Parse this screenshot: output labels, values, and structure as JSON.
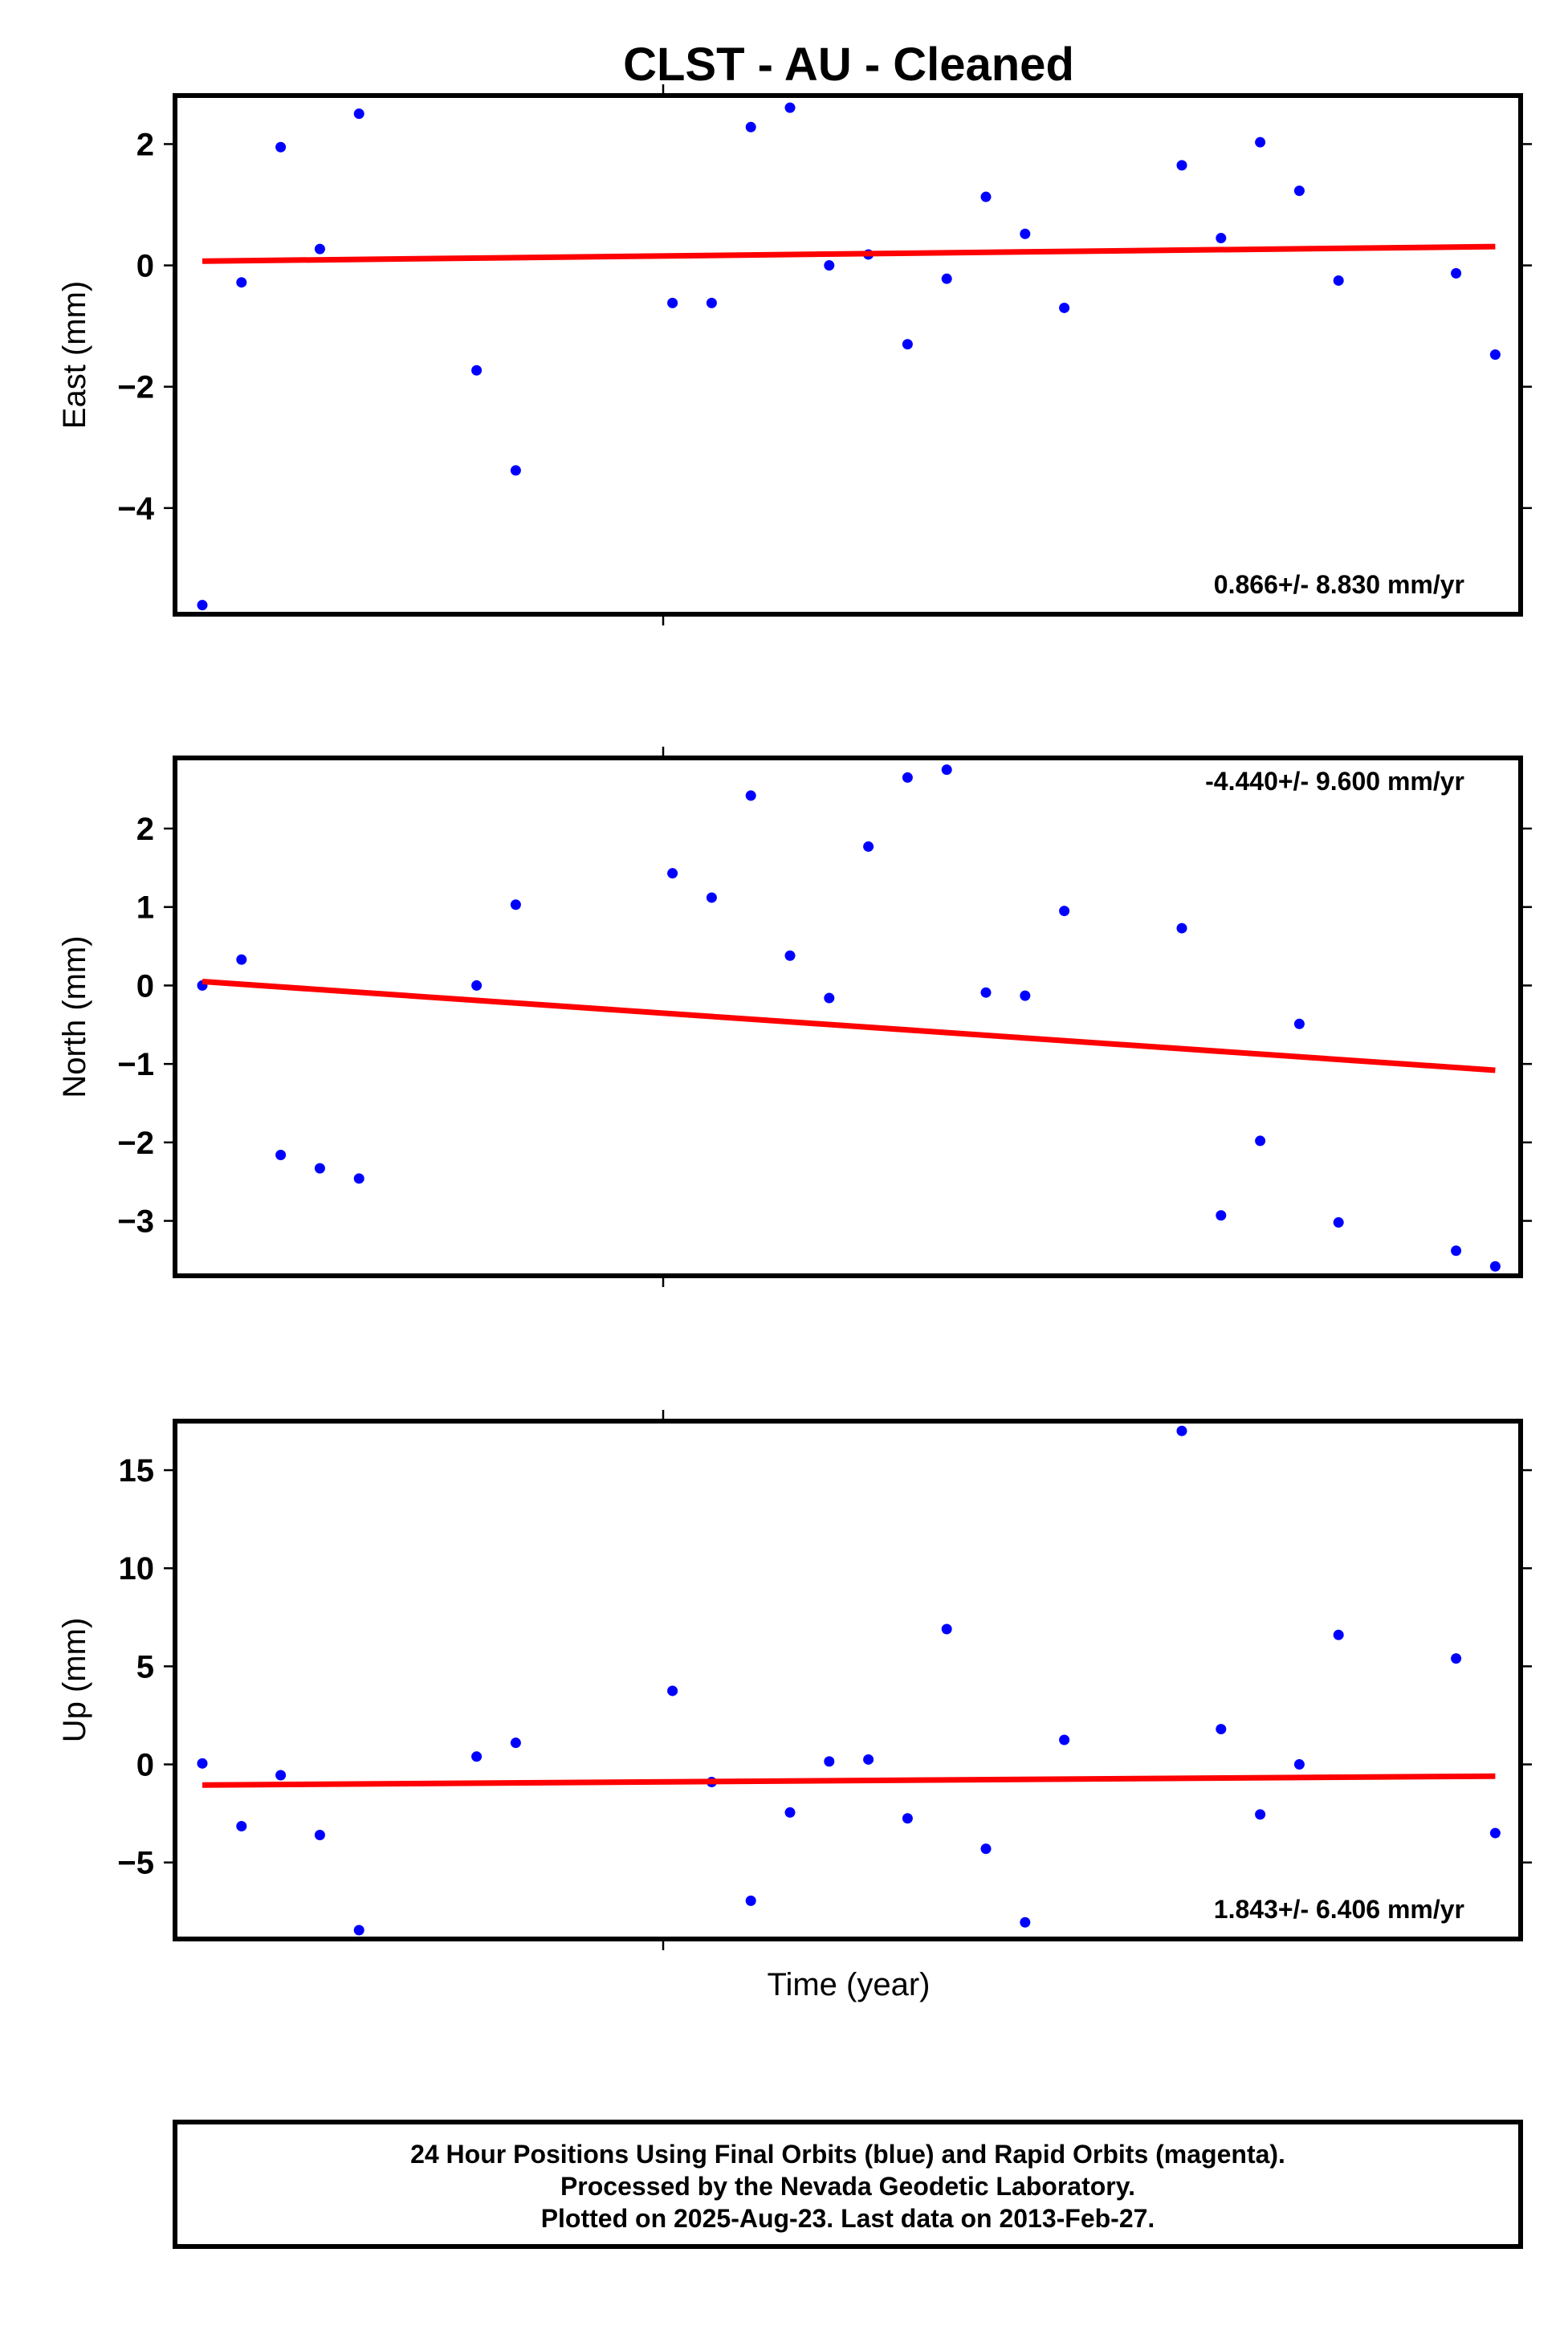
{
  "chart_data": [
    {
      "type": "scatter",
      "panel": "east",
      "title": "CLST  - AU - Cleaned",
      "ylabel": "East (mm)",
      "xlabel": "",
      "ylim": [
        -5.75,
        2.8
      ],
      "yticks": [
        2,
        0,
        -2,
        -4
      ],
      "ytick_labels": [
        "2",
        "0",
        "−2",
        "−4"
      ],
      "x_count": 35,
      "rate_label": "0.866+/- 8.830 mm/yr",
      "rate_position": "bottom-right",
      "series": [
        {
          "name": "",
          "color": "#0000ff",
          "points": [
            {
              "x": 0,
              "y": -5.6
            },
            {
              "x": 1,
              "y": -0.28
            },
            {
              "x": 2,
              "y": 1.95
            },
            {
              "x": 3,
              "y": 0.27
            },
            {
              "x": 4,
              "y": 2.5
            },
            {
              "x": 7,
              "y": -1.73
            },
            {
              "x": 8,
              "y": -3.38
            },
            {
              "x": 12,
              "y": -0.62
            },
            {
              "x": 13,
              "y": -0.62
            },
            {
              "x": 14,
              "y": 2.28
            },
            {
              "x": 15,
              "y": 2.6
            },
            {
              "x": 16,
              "y": 0.0
            },
            {
              "x": 17,
              "y": 0.18
            },
            {
              "x": 18,
              "y": -1.3
            },
            {
              "x": 19,
              "y": -0.22
            },
            {
              "x": 20,
              "y": 1.13
            },
            {
              "x": 21,
              "y": 0.52
            },
            {
              "x": 22,
              "y": -0.7
            },
            {
              "x": 25,
              "y": 1.65
            },
            {
              "x": 26,
              "y": 0.45
            },
            {
              "x": 27,
              "y": 2.03
            },
            {
              "x": 28,
              "y": 1.23
            },
            {
              "x": 29,
              "y": -0.25
            },
            {
              "x": 32,
              "y": -0.13
            },
            {
              "x": 33,
              "y": -1.47
            }
          ]
        }
      ],
      "trend": {
        "color": "#ff0000",
        "x": [
          0,
          33
        ],
        "y": [
          0.07,
          0.31
        ]
      }
    },
    {
      "type": "scatter",
      "panel": "north",
      "ylabel": "North (mm)",
      "xlabel": "",
      "ylim": [
        -3.7,
        2.9
      ],
      "yticks": [
        2,
        1,
        0,
        -1,
        -2,
        -3
      ],
      "ytick_labels": [
        "2",
        "1",
        "0",
        "−1",
        "−2",
        "−3"
      ],
      "x_count": 35,
      "rate_label": "-4.440+/- 9.600 mm/yr",
      "rate_position": "top-right",
      "series": [
        {
          "name": "",
          "color": "#0000ff",
          "points": [
            {
              "x": 0,
              "y": 0.0
            },
            {
              "x": 1,
              "y": 0.33
            },
            {
              "x": 2,
              "y": -2.16
            },
            {
              "x": 3,
              "y": -2.33
            },
            {
              "x": 4,
              "y": -2.46
            },
            {
              "x": 7,
              "y": 0.0
            },
            {
              "x": 8,
              "y": 1.03
            },
            {
              "x": 12,
              "y": 1.43
            },
            {
              "x": 13,
              "y": 1.12
            },
            {
              "x": 14,
              "y": 2.42
            },
            {
              "x": 15,
              "y": 0.38
            },
            {
              "x": 16,
              "y": -0.16
            },
            {
              "x": 17,
              "y": 1.77
            },
            {
              "x": 18,
              "y": 2.65
            },
            {
              "x": 19,
              "y": 2.75
            },
            {
              "x": 20,
              "y": -0.09
            },
            {
              "x": 21,
              "y": -0.13
            },
            {
              "x": 22,
              "y": 0.95
            },
            {
              "x": 25,
              "y": 0.73
            },
            {
              "x": 26,
              "y": -2.93
            },
            {
              "x": 27,
              "y": -1.98
            },
            {
              "x": 28,
              "y": -0.49
            },
            {
              "x": 29,
              "y": -3.02
            },
            {
              "x": 32,
              "y": -3.38
            },
            {
              "x": 33,
              "y": -3.58
            }
          ]
        }
      ],
      "trend": {
        "color": "#ff0000",
        "x": [
          0,
          33
        ],
        "y": [
          0.05,
          -1.08
        ]
      }
    },
    {
      "type": "scatter",
      "panel": "up",
      "ylabel": "Up (mm)",
      "xlabel": "Time (year)",
      "ylim": [
        -8.9,
        17.5
      ],
      "yticks": [
        15,
        10,
        5,
        0,
        -5
      ],
      "ytick_labels": [
        "15",
        "10",
        "5",
        "0",
        "−5"
      ],
      "x_count": 35,
      "rate_label": "1.843+/- 6.406 mm/yr",
      "rate_position": "bottom-right",
      "series": [
        {
          "name": "",
          "color": "#0000ff",
          "points": [
            {
              "x": 0,
              "y": 0.05
            },
            {
              "x": 1,
              "y": -3.15
            },
            {
              "x": 2,
              "y": -0.55
            },
            {
              "x": 3,
              "y": -3.6
            },
            {
              "x": 4,
              "y": -8.45
            },
            {
              "x": 7,
              "y": 0.4
            },
            {
              "x": 8,
              "y": 1.1
            },
            {
              "x": 12,
              "y": 3.75
            },
            {
              "x": 13,
              "y": -0.9
            },
            {
              "x": 14,
              "y": -6.95
            },
            {
              "x": 15,
              "y": -2.45
            },
            {
              "x": 16,
              "y": 0.15
            },
            {
              "x": 17,
              "y": 0.25
            },
            {
              "x": 18,
              "y": -2.75
            },
            {
              "x": 19,
              "y": 6.9
            },
            {
              "x": 20,
              "y": -4.3
            },
            {
              "x": 21,
              "y": -8.05
            },
            {
              "x": 22,
              "y": 1.25
            },
            {
              "x": 25,
              "y": 17.0
            },
            {
              "x": 26,
              "y": 1.8
            },
            {
              "x": 27,
              "y": -2.55
            },
            {
              "x": 28,
              "y": 0.0
            },
            {
              "x": 29,
              "y": 6.6
            },
            {
              "x": 32,
              "y": 5.4
            },
            {
              "x": 33,
              "y": -3.5
            }
          ]
        }
      ],
      "trend": {
        "color": "#ff0000",
        "x": [
          0,
          33
        ],
        "y": [
          -1.05,
          -0.6
        ]
      }
    }
  ],
  "footer": {
    "line1": "24 Hour Positions Using Final Orbits (blue) and Rapid Orbits (magenta).",
    "line2": "Processed by the Nevada Geodetic Laboratory.",
    "line3": "Plotted on 2025-Aug-23. Last data on 2013-Feb-27."
  }
}
